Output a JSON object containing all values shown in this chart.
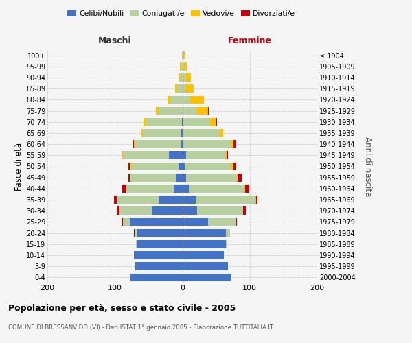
{
  "age_groups": [
    "0-4",
    "5-9",
    "10-14",
    "15-19",
    "20-24",
    "25-29",
    "30-34",
    "35-39",
    "40-44",
    "45-49",
    "50-54",
    "55-59",
    "60-64",
    "65-69",
    "70-74",
    "75-79",
    "80-84",
    "85-89",
    "90-94",
    "95-99",
    "100+"
  ],
  "birth_years": [
    "2000-2004",
    "1995-1999",
    "1990-1994",
    "1985-1989",
    "1980-1984",
    "1975-1979",
    "1970-1974",
    "1965-1969",
    "1960-1964",
    "1955-1959",
    "1950-1954",
    "1945-1949",
    "1940-1944",
    "1935-1939",
    "1930-1934",
    "1925-1929",
    "1920-1924",
    "1915-1919",
    "1910-1914",
    "1905-1909",
    "≤ 1904"
  ],
  "maschi_celibi": [
    77,
    70,
    72,
    68,
    68,
    78,
    45,
    35,
    13,
    10,
    6,
    20,
    2,
    2,
    1,
    0,
    0,
    0,
    0,
    0,
    0
  ],
  "maschi_coniugati": [
    0,
    0,
    0,
    1,
    3,
    10,
    48,
    62,
    70,
    68,
    70,
    68,
    68,
    57,
    52,
    35,
    18,
    8,
    4,
    2,
    1
  ],
  "maschi_vedovi": [
    0,
    0,
    0,
    0,
    0,
    0,
    0,
    0,
    0,
    0,
    2,
    1,
    2,
    2,
    4,
    4,
    4,
    3,
    2,
    2,
    0
  ],
  "maschi_divorziati": [
    0,
    0,
    0,
    0,
    1,
    2,
    4,
    4,
    6,
    2,
    2,
    1,
    1,
    0,
    0,
    0,
    0,
    0,
    0,
    0,
    0
  ],
  "femmine_nubili": [
    72,
    68,
    62,
    65,
    65,
    38,
    22,
    20,
    10,
    6,
    4,
    6,
    2,
    1,
    1,
    0,
    0,
    0,
    0,
    0,
    0
  ],
  "femmine_coniugate": [
    0,
    0,
    0,
    1,
    6,
    42,
    68,
    88,
    82,
    75,
    68,
    58,
    70,
    54,
    40,
    22,
    12,
    5,
    5,
    3,
    2
  ],
  "femmine_vedove": [
    0,
    0,
    0,
    0,
    0,
    0,
    0,
    1,
    1,
    1,
    4,
    2,
    4,
    6,
    9,
    16,
    20,
    12,
    8,
    4,
    2
  ],
  "femmine_divorziate": [
    0,
    0,
    0,
    0,
    0,
    1,
    4,
    2,
    6,
    6,
    4,
    2,
    4,
    0,
    1,
    1,
    0,
    0,
    0,
    0,
    0
  ],
  "color_celibi": "#4472c4",
  "color_coniugati": "#b8cfa0",
  "color_vedovi": "#ffc000",
  "color_divorziati": "#c0000b",
  "xlim": 200,
  "title": "Popolazione per età, sesso e stato civile - 2005",
  "subtitle": "COMUNE DI BRESSANVIDO (VI) - Dati ISTAT 1° gennaio 2005 - Elaborazione TUTTITALIA.IT",
  "ylabel_left": "Fasce di età",
  "ylabel_right": "Anni di nascita",
  "label_maschi": "Maschi",
  "label_femmine": "Femmine",
  "legend_labels": [
    "Celibi/Nubili",
    "Coniugati/e",
    "Vedovi/e",
    "Divorziati/e"
  ],
  "bg_color": "#f5f5f5",
  "grid_color": "#cccccc",
  "femmine_label_color": "#c0000b",
  "maschi_label_color": "#333333"
}
